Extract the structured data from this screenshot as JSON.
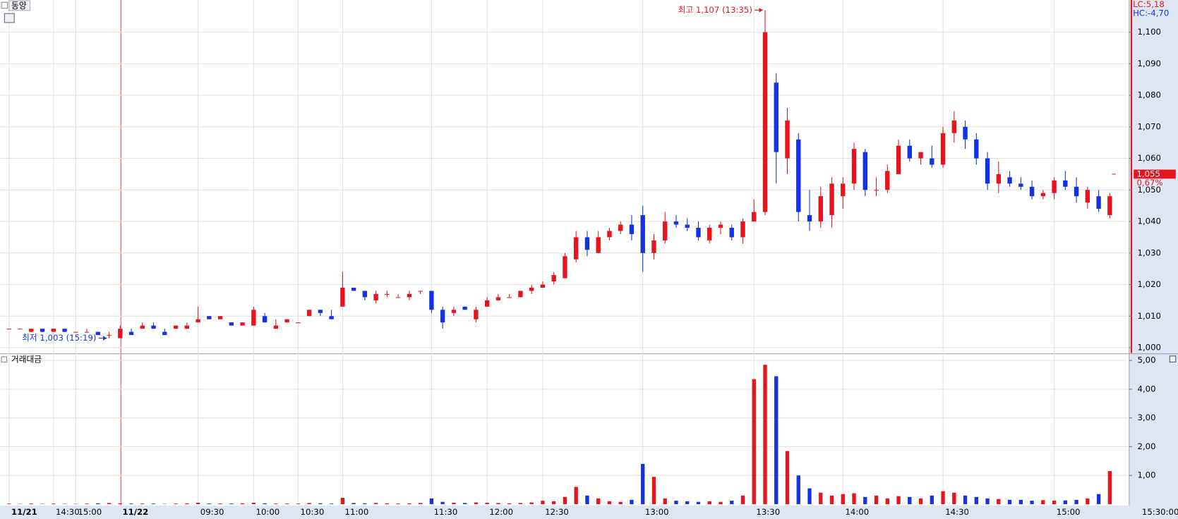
{
  "chart_data": {
    "type": "candlestick",
    "title": "동양",
    "categories": [
      "11/21",
      null,
      null,
      null,
      "14:30",
      null,
      "15:00",
      null,
      null,
      null,
      "11/22",
      null,
      null,
      null,
      null,
      null,
      null,
      "09:30",
      null,
      null,
      null,
      null,
      "10:00",
      null,
      null,
      null,
      "10:30",
      null,
      null,
      null,
      "11:00",
      null,
      null,
      null,
      null,
      null,
      null,
      null,
      "11:30",
      null,
      null,
      null,
      null,
      "12:00",
      null,
      null,
      null,
      null,
      "12:30",
      null,
      null,
      null,
      null,
      null,
      null,
      null,
      null,
      "13:00",
      null,
      null,
      null,
      null,
      null,
      null,
      null,
      null,
      null,
      "13:30",
      null,
      null,
      null,
      null,
      null,
      null,
      null,
      "14:00",
      null,
      null,
      null,
      null,
      null,
      null,
      null,
      null,
      "14:30",
      null,
      null,
      null,
      null,
      null,
      null,
      null,
      null,
      null,
      "15:00",
      null,
      null,
      null,
      null,
      null
    ],
    "open": [
      1006,
      1006,
      1005,
      1006,
      1005,
      1006,
      1005,
      1005,
      1005,
      1004,
      1003,
      1005,
      1006,
      1007,
      1005,
      1006,
      1006,
      1008,
      1010,
      1009,
      1008,
      1007,
      1007,
      1010,
      1006,
      1008,
      1008,
      1010,
      1012,
      1010,
      1013,
      1019,
      1018,
      1015,
      1017,
      1016,
      1016,
      1018,
      1018,
      1012,
      1011,
      1013,
      1009,
      1013,
      1015,
      1016,
      1016,
      1018,
      1019,
      1021,
      1022,
      1028,
      1035,
      1030,
      1035,
      1037,
      1039,
      1042,
      1030,
      1034,
      1040,
      1039,
      1038,
      1034,
      1038,
      1038,
      1035,
      1040,
      1043,
      1084,
      1060,
      1066,
      1042,
      1040,
      1042,
      1048,
      1052,
      1062,
      1050,
      1050,
      1055,
      1064,
      1060,
      1060,
      1058,
      1068,
      1070,
      1066,
      1060,
      1052,
      1054,
      1052,
      1051,
      1048,
      1049,
      1053,
      1051,
      1046,
      1048,
      1042
    ],
    "high": [
      1006,
      1006,
      1006,
      1006,
      1006,
      1006,
      1005,
      1006,
      1005,
      1005,
      1007,
      1006,
      1008,
      1008,
      1006,
      1007,
      1008,
      1013,
      1010,
      1010,
      1008,
      1008,
      1013,
      1011,
      1009,
      1009,
      1008,
      1012,
      1012,
      1012,
      1024,
      1019,
      1018,
      1018,
      1018,
      1017,
      1018,
      1018,
      1018,
      1013,
      1013,
      1013,
      1013,
      1016,
      1017,
      1017,
      1018,
      1020,
      1021,
      1024,
      1030,
      1037,
      1037,
      1037,
      1038,
      1040,
      1042,
      1045,
      1036,
      1043,
      1042,
      1041,
      1040,
      1039,
      1040,
      1039,
      1041,
      1047,
      1107,
      1087,
      1076,
      1068,
      1050,
      1051,
      1054,
      1054,
      1065,
      1063,
      1054,
      1058,
      1066,
      1066,
      1062,
      1064,
      1070,
      1075,
      1072,
      1068,
      1062,
      1059,
      1056,
      1054,
      1053,
      1050,
      1054,
      1056,
      1054,
      1051,
      1050,
      1049
    ],
    "low": [
      1006,
      1006,
      1005,
      1005,
      1005,
      1005,
      1005,
      1005,
      1004,
      1003,
      1003,
      1004,
      1006,
      1006,
      1004,
      1006,
      1006,
      1008,
      1009,
      1009,
      1007,
      1007,
      1007,
      1008,
      1006,
      1008,
      1008,
      1010,
      1010,
      1009,
      1013,
      1018,
      1015,
      1014,
      1016,
      1016,
      1015,
      1017,
      1011,
      1006,
      1010,
      1012,
      1008,
      1013,
      1015,
      1016,
      1016,
      1017,
      1019,
      1020,
      1022,
      1027,
      1029,
      1030,
      1034,
      1036,
      1034,
      1024,
      1028,
      1033,
      1038,
      1037,
      1034,
      1033,
      1036,
      1034,
      1033,
      1040,
      1042,
      1052,
      1055,
      1040,
      1037,
      1038,
      1038,
      1044,
      1050,
      1048,
      1048,
      1049,
      1055,
      1059,
      1058,
      1057,
      1057,
      1065,
      1063,
      1058,
      1050,
      1049,
      1051,
      1050,
      1047,
      1047,
      1047,
      1050,
      1046,
      1044,
      1043,
      1041
    ],
    "close": [
      1006,
      1006,
      1006,
      1005,
      1006,
      1005,
      1005,
      1005,
      1004,
      1004,
      1006,
      1004,
      1007,
      1006,
      1004,
      1007,
      1007,
      1009,
      1009,
      1010,
      1007,
      1008,
      1012,
      1008,
      1007,
      1009,
      1008,
      1012,
      1011,
      1009,
      1019,
      1018,
      1016,
      1017,
      1017,
      1016,
      1017,
      1018,
      1012,
      1008,
      1012,
      1012,
      1012,
      1015,
      1016,
      1016,
      1018,
      1019,
      1020,
      1023,
      1029,
      1035,
      1031,
      1035,
      1037,
      1039,
      1036,
      1030,
      1034,
      1040,
      1039,
      1038,
      1035,
      1038,
      1039,
      1035,
      1040,
      1043,
      1100,
      1062,
      1072,
      1043,
      1040,
      1048,
      1052,
      1052,
      1063,
      1050,
      1050,
      1056,
      1064,
      1060,
      1062,
      1058,
      1068,
      1072,
      1066,
      1060,
      1052,
      1055,
      1052,
      1051,
      1048,
      1049,
      1053,
      1051,
      1048,
      1050,
      1044,
      1048
    ],
    "up_color": "#e8141c",
    "down_color": "#1432e0",
    "ylim": [
      998.3,
      1110.2
    ],
    "yticks": [
      {
        "value": 1000,
        "label": "1,000"
      },
      {
        "value": 1010,
        "label": "1,010"
      },
      {
        "value": 1020,
        "label": "1,020"
      },
      {
        "value": 1030,
        "label": "1,030"
      },
      {
        "value": 1040,
        "label": "1,040"
      },
      {
        "value": 1050,
        "label": "1,050"
      },
      {
        "value": 1060,
        "label": "1,060"
      },
      {
        "value": 1070,
        "label": "1,070"
      },
      {
        "value": 1080,
        "label": "1,080"
      },
      {
        "value": 1090,
        "label": "1,090"
      },
      {
        "value": 1100,
        "label": "1,100"
      }
    ],
    "grid": true,
    "high_label": "최고 1,107 (13:35)",
    "low_label": "최저 1,003 (15:19)",
    "lc_label": "LC:5,18",
    "hc_label": "HC:-4,70",
    "current_price": {
      "value": 1055,
      "label": "1,055"
    },
    "change_label": "0,67%",
    "current_time": "15:30:00",
    "volume": {
      "title": "거래대금",
      "values": [
        0.02,
        0.01,
        0.02,
        0.01,
        0.02,
        0.01,
        0.01,
        0.02,
        0.03,
        0.04,
        0.03,
        0.02,
        0.02,
        0.02,
        0.01,
        0.02,
        0.03,
        0.05,
        0.02,
        0.02,
        0.02,
        0.03,
        0.05,
        0.03,
        0.02,
        0.02,
        0.02,
        0.04,
        0.03,
        0.02,
        0.22,
        0.04,
        0.03,
        0.04,
        0.03,
        0.02,
        0.03,
        0.04,
        0.2,
        0.08,
        0.05,
        0.04,
        0.06,
        0.05,
        0.04,
        0.03,
        0.04,
        0.06,
        0.12,
        0.1,
        0.25,
        0.6,
        0.3,
        0.2,
        0.1,
        0.08,
        0.15,
        1.4,
        0.95,
        0.2,
        0.12,
        0.1,
        0.08,
        0.1,
        0.08,
        0.12,
        0.3,
        4.35,
        4.85,
        4.45,
        1.85,
        1.0,
        0.55,
        0.4,
        0.3,
        0.35,
        0.38,
        0.25,
        0.3,
        0.2,
        0.28,
        0.25,
        0.2,
        0.3,
        0.45,
        0.4,
        0.3,
        0.25,
        0.2,
        0.18,
        0.15,
        0.15,
        0.12,
        0.14,
        0.12,
        0.13,
        0.15,
        0.2,
        0.35,
        1.15
      ],
      "ylim": [
        0,
        5.18
      ],
      "yticks": [
        {
          "value": 1,
          "label": "1,00"
        },
        {
          "value": 2,
          "label": "2,00"
        },
        {
          "value": 3,
          "label": "3,00"
        },
        {
          "value": 4,
          "label": "4,00"
        },
        {
          "value": 5,
          "label": "5,00"
        }
      ]
    }
  }
}
